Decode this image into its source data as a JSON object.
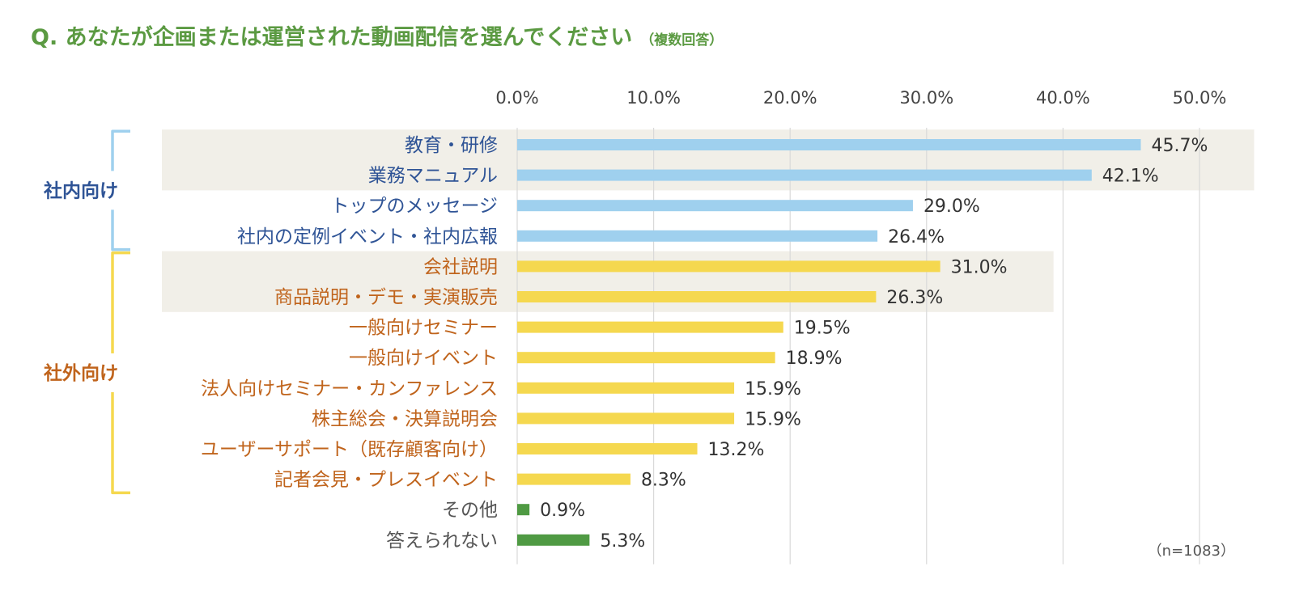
{
  "header": {
    "title": "Q. あなたが企画または運営された動画配信を選んでください",
    "subtitle": "（複数回答）"
  },
  "chart_data": {
    "type": "bar",
    "orientation": "horizontal",
    "x_ticks": [
      "0.0%",
      "10.0%",
      "20.0%",
      "30.0%",
      "40.0%",
      "50.0%"
    ],
    "xlim": [
      0,
      50
    ],
    "grid": true,
    "groups": [
      {
        "name": "社内向け",
        "color": "#2f5496",
        "bracket_color": "#9fd0ee",
        "range": [
          0,
          3
        ]
      },
      {
        "name": "社外向け",
        "color": "#c0641c",
        "bracket_color": "#f5d84f",
        "range": [
          4,
          11
        ]
      }
    ],
    "highlight_rows": [
      [
        0,
        1
      ],
      [
        4,
        5
      ]
    ],
    "highlight_color": "#f1efe8",
    "categories": [
      "教育・研修",
      "業務マニュアル",
      "トップのメッセージ",
      "社内の定例イベント・社内広報",
      "会社説明",
      "商品説明・デモ・実演販売",
      "一般向けセミナー",
      "一般向けイベント",
      "法人向けセミナー・カンファレンス",
      "株主総会・決算説明会",
      "ユーザーサポート（既存顧客向け）",
      "記者会見・プレスイベント",
      "その他",
      "答えられない"
    ],
    "values": [
      45.7,
      42.1,
      29.0,
      26.4,
      31.0,
      26.3,
      19.5,
      18.9,
      15.9,
      15.9,
      13.2,
      8.3,
      0.9,
      5.3
    ],
    "value_labels": [
      "45.7%",
      "42.1%",
      "29.0%",
      "26.4%",
      "31.0%",
      "26.3%",
      "19.5%",
      "18.9%",
      "15.9%",
      "15.9%",
      "13.2%",
      "8.3%",
      "0.9%",
      "5.3%"
    ],
    "bar_colors": [
      "#9fd0ee",
      "#9fd0ee",
      "#9fd0ee",
      "#9fd0ee",
      "#f5d84f",
      "#f5d84f",
      "#f5d84f",
      "#f5d84f",
      "#f5d84f",
      "#f5d84f",
      "#f5d84f",
      "#f5d84f",
      "#4f9a43",
      "#4f9a43"
    ],
    "label_colors": [
      "#2f5496",
      "#2f5496",
      "#2f5496",
      "#2f5496",
      "#c0641c",
      "#c0641c",
      "#c0641c",
      "#c0641c",
      "#c0641c",
      "#c0641c",
      "#c0641c",
      "#c0641c",
      "#555555",
      "#555555"
    ],
    "note": "（n=1083）"
  }
}
